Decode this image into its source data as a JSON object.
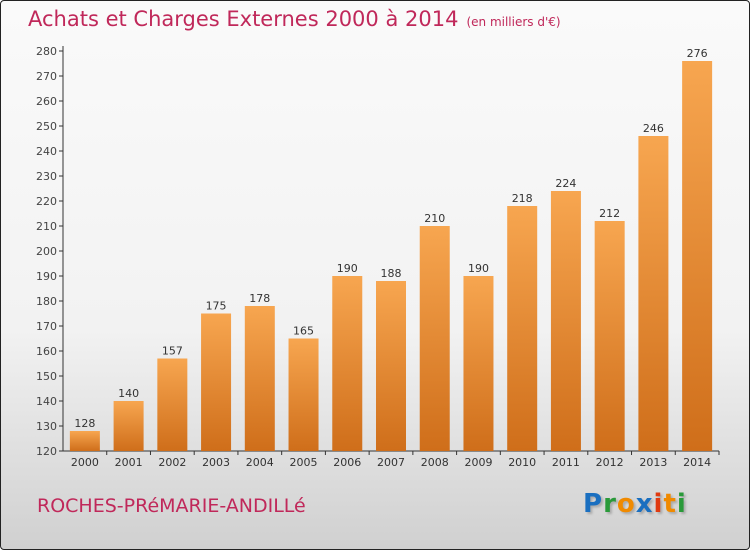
{
  "chart_data": {
    "type": "bar",
    "title": "Achats et Charges Externes 2000 à 2014",
    "unit": "(en milliers d'€)",
    "categories": [
      "2000",
      "2001",
      "2002",
      "2003",
      "2004",
      "2005",
      "2006",
      "2007",
      "2008",
      "2009",
      "2010",
      "2011",
      "2012",
      "2013",
      "2014"
    ],
    "values": [
      128,
      140,
      157,
      175,
      178,
      165,
      190,
      188,
      210,
      190,
      218,
      224,
      212,
      246,
      276
    ],
    "ylim": [
      120,
      280
    ],
    "yticks": [
      120,
      130,
      140,
      150,
      160,
      170,
      180,
      190,
      200,
      210,
      220,
      230,
      240,
      250,
      260,
      270,
      280
    ],
    "xlabel": "",
    "ylabel": "",
    "grid": false
  },
  "commune": "ROCHES-PRéMARIE-ANDILLé",
  "logo": {
    "letters": [
      "P",
      "r",
      "o",
      "x",
      "i",
      "t",
      "i"
    ],
    "colors": [
      "#1a6fc0",
      "#2a9a3a",
      "#f08a00",
      "#1a6fc0",
      "#e03a10",
      "#f08a00",
      "#2a9a3a"
    ]
  },
  "colors": {
    "bar_top": "#f7a650",
    "bar_bottom": "#cf6e1a",
    "title": "#c0285a"
  }
}
